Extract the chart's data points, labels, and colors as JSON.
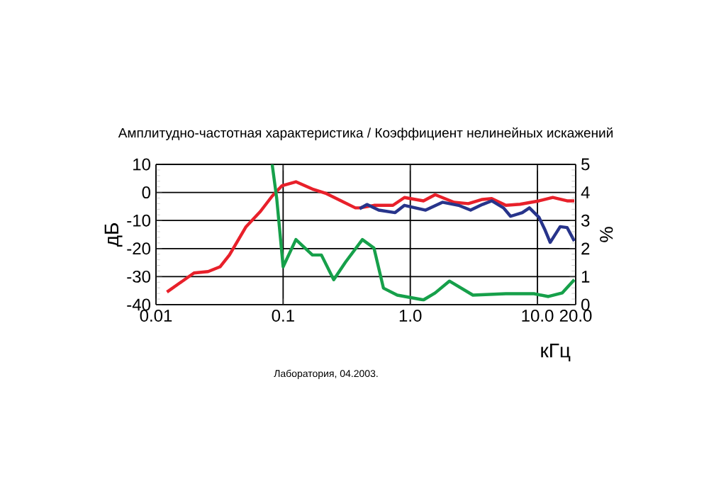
{
  "chart_data": {
    "type": "line",
    "title": "Амплитудно-частотная характеристика / Коэффициент нелинейных искажений",
    "xlabel": "кГц",
    "ylabel": "дБ",
    "y2label": "%",
    "annotations": [
      "Лаборатория, 04.2003."
    ],
    "log": "x",
    "grid": true,
    "xlim": [
      0.01,
      20
    ],
    "ylim": [
      -40,
      10
    ],
    "y2lim": [
      0,
      5
    ],
    "xticks": [
      0.01,
      0.1,
      {
        "value": 1,
        "label": "1.0"
      },
      {
        "value": 10,
        "label": "10.0"
      },
      {
        "value": 20,
        "label": "20.0"
      }
    ],
    "yticks": [
      -40,
      -30,
      -20,
      -10,
      0,
      10
    ],
    "y2ticks": [
      0,
      1,
      2,
      3,
      4,
      5
    ],
    "series": [
      {
        "color": "#e8202a",
        "x": [
          0.0122,
          0.0199,
          0.0257,
          0.0319,
          0.0378,
          0.0511,
          0.0662,
          0.082,
          0.098,
          0.126,
          0.17,
          0.219,
          0.286,
          0.37,
          0.4,
          0.518,
          0.73,
          0.9,
          1.27,
          1.57,
          2.21,
          2.86,
          3.69,
          4.37,
          5.65,
          7.3,
          10.3,
          13.2,
          17.1,
          19.5
        ],
        "values": [
          -35.5,
          -28.7,
          -28.2,
          -26.5,
          -22.3,
          -12.2,
          -6.8,
          -1.3,
          2.4,
          3.8,
          1.2,
          -0.4,
          -3,
          -5.5,
          -5.5,
          -4.6,
          -4.6,
          -1.8,
          -3,
          -0.8,
          -3.5,
          -4,
          -2.5,
          -2.2,
          -4.6,
          -4.2,
          -3,
          -1.8,
          -3,
          -3
        ]
      },
      {
        "color": "#27348b",
        "x": [
          0.4,
          0.456,
          0.565,
          0.76,
          0.9,
          1.32,
          1.79,
          2.4,
          2.98,
          3.69,
          4.37,
          5.41,
          6.15,
          7.6,
          8.65,
          10.3,
          11.4,
          12.6,
          15.1,
          17.1,
          19.5
        ],
        "values": [
          -5.8,
          -4.3,
          -6.3,
          -7.2,
          -4.6,
          -6.3,
          -3.5,
          -4.6,
          -6.3,
          -4.3,
          -3,
          -5.5,
          -8.5,
          -7.2,
          -5.5,
          -8.9,
          -13.1,
          -17.8,
          -12.2,
          -12.5,
          -17.3
        ]
      },
      {
        "color": "#16a04a",
        "axis": "y2",
        "x": [
          0.082,
          0.089,
          0.1,
          0.126,
          0.17,
          0.2,
          0.25,
          0.31,
          0.42,
          0.518,
          0.615,
          0.79,
          1.27,
          1.57,
          2.03,
          3.11,
          5.65,
          9.4,
          12.2,
          15.7,
          19.5
        ],
        "values": [
          5,
          3.79,
          1.35,
          2.32,
          1.77,
          1.77,
          0.89,
          1.52,
          2.32,
          2.02,
          0.59,
          0.34,
          0.17,
          0.42,
          0.84,
          0.34,
          0.39,
          0.39,
          0.29,
          0.42,
          0.89
        ]
      }
    ]
  }
}
